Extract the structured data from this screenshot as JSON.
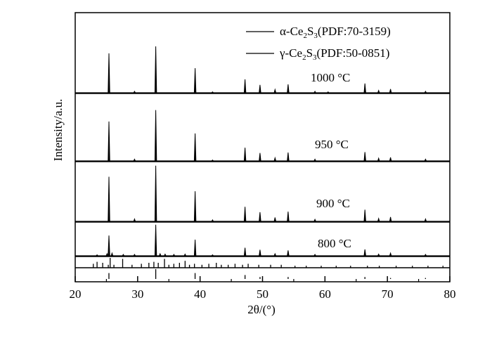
{
  "chart_data": {
    "type": "line",
    "xlabel": "2θ/(°)",
    "ylabel": "Intensity/a.u.",
    "xlim": [
      20,
      80
    ],
    "x_ticks": [
      "20",
      "30",
      "40",
      "50",
      "60",
      "70",
      "80"
    ],
    "grid": false,
    "legend_position": "top-right",
    "legend": [
      {
        "label": "α-Ce2S3(PDF:70-3159)",
        "parts": [
          "α-Ce",
          "2",
          "S",
          "3",
          "(PDF:70-3159)"
        ]
      },
      {
        "label": "γ-Ce2S3(PDF:50-0851)",
        "parts": [
          "γ-Ce",
          "2",
          "S",
          "3",
          "(PDF:50-0851)"
        ]
      }
    ],
    "series": [
      {
        "name": "1000 °C",
        "peaks": [
          [
            25.4,
            0.85
          ],
          [
            29.5,
            0.03
          ],
          [
            32.9,
            1.0
          ],
          [
            39.2,
            0.53
          ],
          [
            42.0,
            0.02
          ],
          [
            47.2,
            0.29
          ],
          [
            49.6,
            0.17
          ],
          [
            52.0,
            0.07
          ],
          [
            54.1,
            0.18
          ],
          [
            58.4,
            0.03
          ],
          [
            60.5,
            0.02
          ],
          [
            66.4,
            0.2
          ],
          [
            68.6,
            0.05
          ],
          [
            70.5,
            0.08
          ],
          [
            76.1,
            0.03
          ]
        ]
      },
      {
        "name": "950 °C",
        "peaks": [
          [
            25.4,
            0.89
          ],
          [
            29.5,
            0.04
          ],
          [
            32.9,
            1.15
          ],
          [
            39.2,
            0.62
          ],
          [
            42.0,
            0.02
          ],
          [
            47.2,
            0.3
          ],
          [
            49.6,
            0.18
          ],
          [
            52.0,
            0.07
          ],
          [
            54.1,
            0.19
          ],
          [
            58.4,
            0.04
          ],
          [
            66.4,
            0.2
          ],
          [
            68.6,
            0.06
          ],
          [
            70.5,
            0.08
          ],
          [
            76.1,
            0.04
          ]
        ]
      },
      {
        "name": "900 °C",
        "peaks": [
          [
            25.4,
            0.92
          ],
          [
            29.5,
            0.05
          ],
          [
            32.9,
            1.15
          ],
          [
            39.2,
            0.62
          ],
          [
            42.0,
            0.03
          ],
          [
            47.2,
            0.3
          ],
          [
            49.6,
            0.19
          ],
          [
            52.0,
            0.08
          ],
          [
            54.1,
            0.2
          ],
          [
            58.4,
            0.04
          ],
          [
            66.4,
            0.24
          ],
          [
            68.6,
            0.06
          ],
          [
            70.5,
            0.09
          ],
          [
            76.1,
            0.05
          ]
        ]
      },
      {
        "name": "800 °C",
        "peaks": [
          [
            23.5,
            0.03
          ],
          [
            25.1,
            0.06
          ],
          [
            25.4,
            0.6
          ],
          [
            25.9,
            0.08
          ],
          [
            27.7,
            0.04
          ],
          [
            29.5,
            0.04
          ],
          [
            32.9,
            0.92
          ],
          [
            33.6,
            0.06
          ],
          [
            34.4,
            0.05
          ],
          [
            35.8,
            0.04
          ],
          [
            37.6,
            0.05
          ],
          [
            39.2,
            0.48
          ],
          [
            42.0,
            0.03
          ],
          [
            47.2,
            0.24
          ],
          [
            49.6,
            0.18
          ],
          [
            52.0,
            0.06
          ],
          [
            54.1,
            0.16
          ],
          [
            58.4,
            0.04
          ],
          [
            66.4,
            0.19
          ],
          [
            68.6,
            0.05
          ],
          [
            70.5,
            0.08
          ],
          [
            76.1,
            0.04
          ]
        ]
      }
    ],
    "reference_patterns": [
      {
        "name": "α-Ce2S3(PDF:70-3159)",
        "lines": [
          [
            22.9,
            0.4
          ],
          [
            23.5,
            0.6
          ],
          [
            24.4,
            0.5
          ],
          [
            25.3,
            0.3
          ],
          [
            25.6,
            1.0
          ],
          [
            26.2,
            0.3
          ],
          [
            27.6,
            0.9
          ],
          [
            29.1,
            0.3
          ],
          [
            30.6,
            0.4
          ],
          [
            31.8,
            0.5
          ],
          [
            32.6,
            0.6
          ],
          [
            33.3,
            0.5
          ],
          [
            34.3,
            0.9
          ],
          [
            35.0,
            0.3
          ],
          [
            35.8,
            0.4
          ],
          [
            36.7,
            0.5
          ],
          [
            37.6,
            0.7
          ],
          [
            38.3,
            0.3
          ],
          [
            39.1,
            0.4
          ],
          [
            40.3,
            0.3
          ],
          [
            41.4,
            0.4
          ],
          [
            42.6,
            0.5
          ],
          [
            43.4,
            0.3
          ],
          [
            44.5,
            0.3
          ],
          [
            45.6,
            0.4
          ],
          [
            46.8,
            0.3
          ],
          [
            47.7,
            0.4
          ],
          [
            49.4,
            0.3
          ],
          [
            51.3,
            0.3
          ],
          [
            53.0,
            0.3
          ],
          [
            55.2,
            0.2
          ],
          [
            57.0,
            0.2
          ],
          [
            59.4,
            0.2
          ],
          [
            61.8,
            0.2
          ],
          [
            64.1,
            0.2
          ],
          [
            66.8,
            0.2
          ],
          [
            68.7,
            0.2
          ],
          [
            71.4,
            0.2
          ],
          [
            74.0,
            0.2
          ],
          [
            76.5,
            0.2
          ],
          [
            78.9,
            0.2
          ]
        ]
      },
      {
        "name": "γ-Ce2S3(PDF:50-0851)",
        "lines": [
          [
            25.4,
            0.6
          ],
          [
            32.9,
            1.0
          ],
          [
            39.2,
            0.6
          ],
          [
            47.2,
            0.4
          ],
          [
            49.6,
            0.2
          ],
          [
            54.1,
            0.2
          ],
          [
            66.4,
            0.2
          ],
          [
            70.5,
            0.1
          ],
          [
            76.1,
            0.1
          ]
        ]
      }
    ]
  }
}
